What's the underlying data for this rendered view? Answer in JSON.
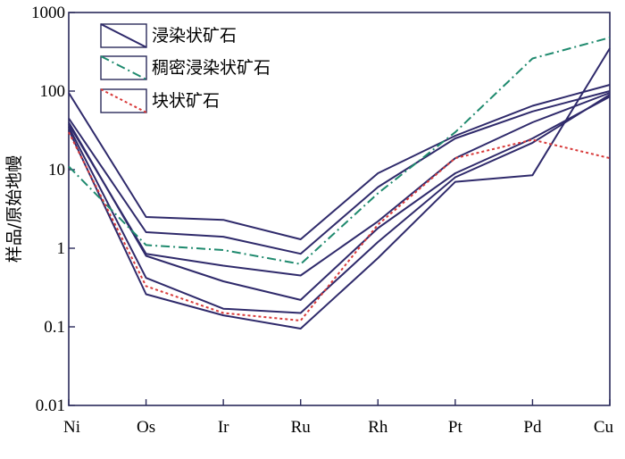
{
  "chart_data": {
    "type": "line",
    "y_scale": "log",
    "ylim": [
      0.01,
      1000
    ],
    "y_ticks": [
      "0.01",
      "0.1",
      "1",
      "10",
      "100",
      "1000"
    ],
    "ylabel": "样品/原始地幔",
    "categories": [
      "Ni",
      "Os",
      "Ir",
      "Ru",
      "Rh",
      "Pt",
      "Pd",
      "Cu"
    ],
    "legend": [
      {
        "label": "浸染状矿石",
        "style": "solid",
        "color": "#2f2a6b"
      },
      {
        "label": "稠密浸染状矿石",
        "style": "dashdot",
        "color": "#1f8a6e"
      },
      {
        "label": "块状矿石",
        "style": "dotted",
        "color": "#d83a3a"
      }
    ],
    "series": [
      {
        "group": "浸染状矿石",
        "values": [
          95,
          2.5,
          2.3,
          1.3,
          9,
          27,
          65,
          120
        ]
      },
      {
        "group": "浸染状矿石",
        "values": [
          45,
          1.6,
          1.4,
          0.85,
          6,
          25,
          55,
          100
        ]
      },
      {
        "group": "浸染状矿石",
        "values": [
          38,
          0.85,
          0.6,
          0.45,
          2.2,
          14,
          40,
          95
        ]
      },
      {
        "group": "浸染状矿石",
        "values": [
          40,
          0.8,
          0.38,
          0.22,
          1.8,
          9,
          25,
          85
        ]
      },
      {
        "group": "浸染状矿石",
        "values": [
          35,
          0.42,
          0.17,
          0.15,
          1.2,
          8,
          22,
          90
        ]
      },
      {
        "group": "浸染状矿石",
        "values": [
          32,
          0.26,
          0.14,
          0.095,
          0.75,
          7,
          8.5,
          350
        ]
      },
      {
        "group": "稠密浸染状矿石",
        "values": [
          11,
          1.1,
          0.95,
          0.63,
          5,
          30,
          260,
          480
        ]
      },
      {
        "group": "块状矿石",
        "values": [
          30,
          0.33,
          0.15,
          0.12,
          2,
          14,
          24,
          14
        ]
      }
    ]
  }
}
